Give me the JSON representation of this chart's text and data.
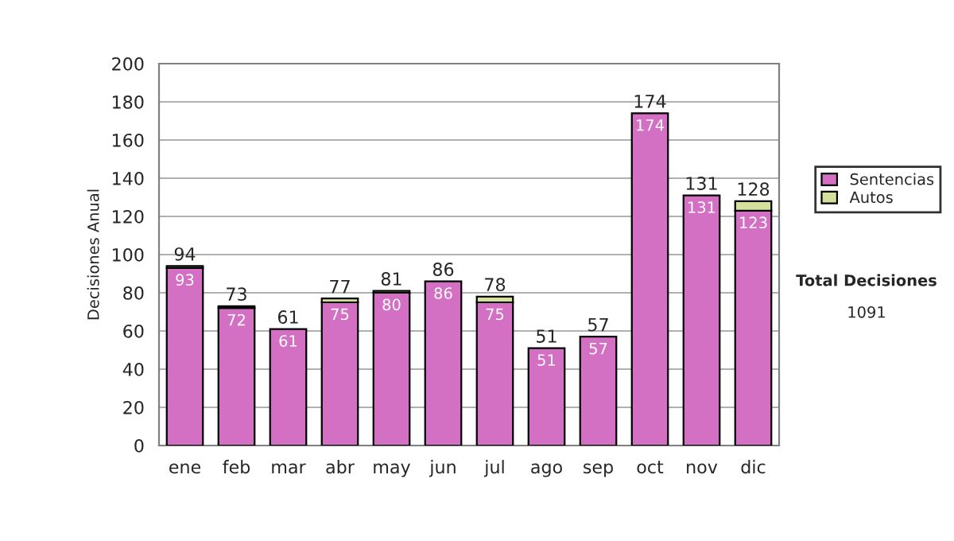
{
  "chart_data": {
    "type": "bar",
    "stacked": true,
    "ylabel": "Decisiones Anual",
    "categories": [
      "ene",
      "feb",
      "mar",
      "abr",
      "may",
      "jun",
      "jul",
      "ago",
      "sep",
      "oct",
      "nov",
      "dic"
    ],
    "series": [
      {
        "name": "Sentencias",
        "color": "#d470c4",
        "values": [
          93,
          72,
          61,
          75,
          80,
          86,
          75,
          51,
          57,
          174,
          131,
          123
        ],
        "value_labels": [
          "93",
          "72",
          "61",
          "75",
          "80",
          "86",
          "75",
          "51",
          "57",
          "174",
          "131",
          "123"
        ]
      },
      {
        "name": "Autos",
        "color": "#d4e09c",
        "values": [
          1,
          1,
          0,
          2,
          1,
          0,
          3,
          0,
          0,
          0,
          0,
          5
        ]
      }
    ],
    "totals": [
      "94",
      "73",
      "61",
      "77",
      "81",
      "86",
      "78",
      "51",
      "57",
      "174",
      "131",
      "128"
    ],
    "ylim": [
      0,
      200
    ],
    "yticks": [
      0,
      20,
      40,
      60,
      80,
      100,
      120,
      140,
      160,
      180,
      200
    ],
    "grid": "y",
    "legend": "right",
    "annotations": [
      "Total Decisiones",
      "1091"
    ]
  }
}
